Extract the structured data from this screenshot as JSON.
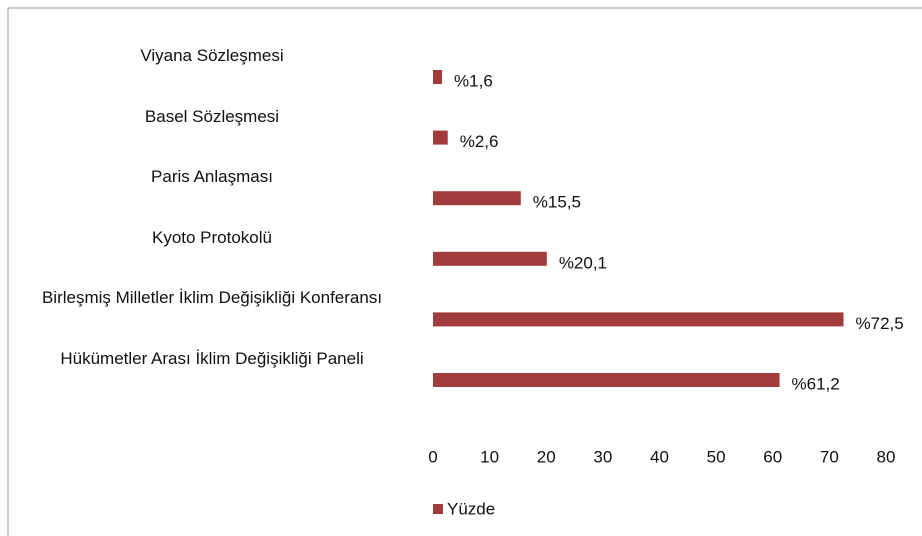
{
  "chart_data": {
    "type": "barh",
    "categories": [
      "Viyana Sözleşmesi",
      "Basel Sözleşmesi",
      "Paris Anlaşması",
      "Kyoto Protokolü",
      "Birleşmiş Milletler İklim Değişikliği Konferansı",
      "Hükümetler Arası İklim Değişikliği Paneli"
    ],
    "series": [
      {
        "name": "Yüzde",
        "color": "#a23b3b",
        "values": [
          1.6,
          2.6,
          15.5,
          20.1,
          72.5,
          61.2
        ],
        "value_labels": [
          "%1,6",
          "%2,6",
          "%15,5",
          "%20,1",
          "%72,5",
          "%61,2"
        ]
      }
    ],
    "xlim": [
      0,
      80
    ],
    "xticks": [
      0,
      10,
      20,
      30,
      40,
      50,
      60,
      70,
      80
    ],
    "grid": false,
    "legend": "bottom"
  }
}
